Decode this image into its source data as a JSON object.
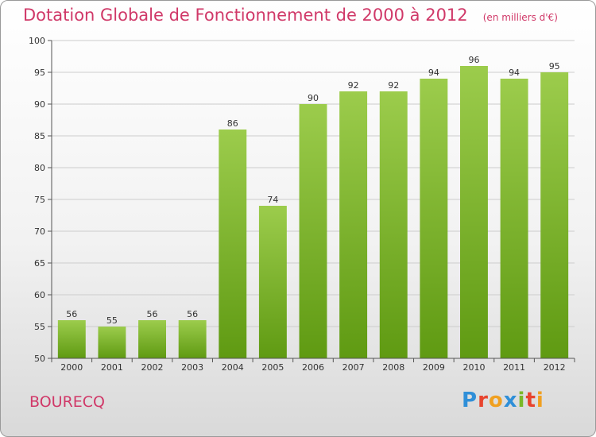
{
  "title": "Dotation Globale de Fonctionnement de 2000 à 2012",
  "subtitle": "(en milliers d'€)",
  "commune": "BOURECQ",
  "logo": {
    "letters": [
      {
        "ch": "P",
        "color": "#2f8fd8"
      },
      {
        "ch": "r",
        "color": "#e8442e"
      },
      {
        "ch": "o",
        "color": "#f0a020"
      },
      {
        "ch": "x",
        "color": "#2f8fd8"
      },
      {
        "ch": "i",
        "color": "#7ab828"
      },
      {
        "ch": "t",
        "color": "#e8442e"
      },
      {
        "ch": "i",
        "color": "#f0a020"
      }
    ]
  },
  "colors": {
    "bar_top": "#9ccc4c",
    "bar_bottom": "#5f9a12",
    "grid": "#cccccc",
    "axis": "#555555"
  },
  "chart_data": {
    "type": "bar",
    "categories": [
      "2000",
      "2001",
      "2002",
      "2003",
      "2004",
      "2005",
      "2006",
      "2007",
      "2008",
      "2009",
      "2010",
      "2011",
      "2012"
    ],
    "values": [
      56,
      55,
      56,
      56,
      86,
      74,
      90,
      92,
      92,
      94,
      96,
      94,
      95
    ],
    "ylim": [
      50,
      100
    ],
    "yticks": [
      50,
      55,
      60,
      65,
      70,
      75,
      80,
      85,
      90,
      95,
      100
    ],
    "grid": true,
    "xlabel": "",
    "ylabel": ""
  }
}
